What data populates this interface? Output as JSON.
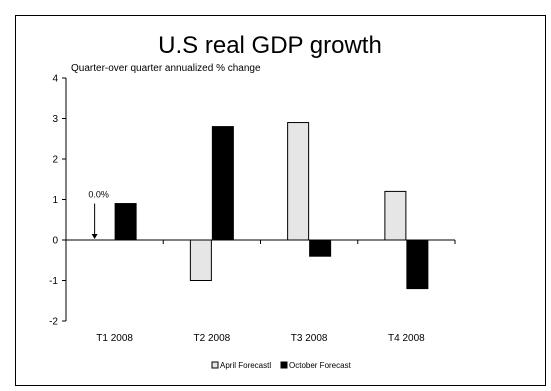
{
  "chart_data": {
    "type": "bar",
    "title": "U.S real GDP growth",
    "subtitle": "Quarter-over quarter annualized % change",
    "categories": [
      "T1 2008",
      "T2 2008",
      "T3 2008",
      "T4 2008"
    ],
    "series": [
      {
        "name": "April Forecastl",
        "values": [
          0.0,
          -1.0,
          2.9,
          1.2
        ],
        "color": "#e6e6e6"
      },
      {
        "name": "October Forecast",
        "values": [
          0.9,
          2.8,
          -0.4,
          -1.2
        ],
        "color": "#000000"
      }
    ],
    "ylim": [
      -2,
      4
    ],
    "yticks": [
      "-2",
      "-1",
      "0",
      "1",
      "2",
      "3",
      "4"
    ],
    "legend_position": "bottom",
    "grid": false,
    "annotations": [
      {
        "text": "0.0%",
        "category": "T1 2008",
        "series": "April Forecastl",
        "arrow": "down"
      }
    ]
  }
}
